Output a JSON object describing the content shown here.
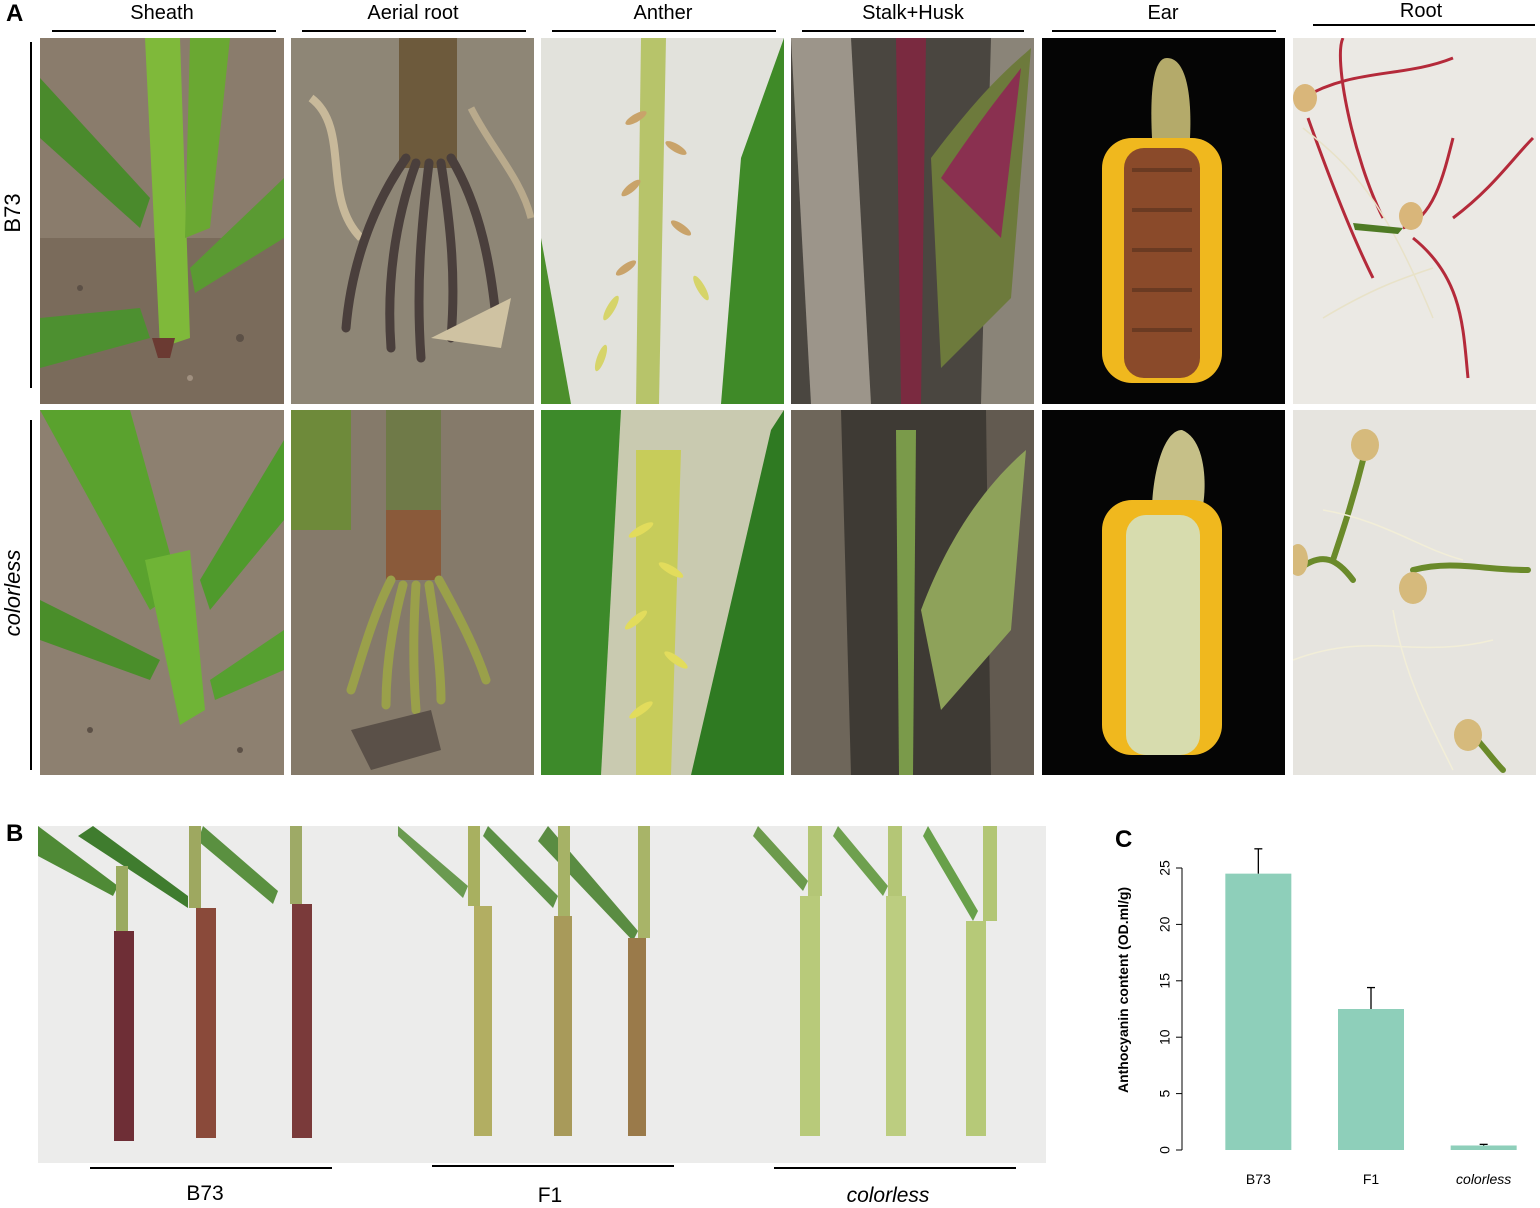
{
  "panel_a": {
    "letter": "A",
    "columns": [
      "Sheath",
      "Aerial root",
      "Anther",
      "Stalk+Husk",
      "Ear",
      "Root"
    ],
    "rows": [
      "B73",
      "colorless"
    ]
  },
  "panel_b": {
    "letter": "B",
    "groups": [
      "B73",
      "F1",
      "colorless"
    ]
  },
  "panel_c": {
    "letter": "C"
  },
  "chart_data": {
    "type": "bar",
    "categories": [
      "B73",
      "F1",
      "colorless"
    ],
    "values": [
      24.5,
      12.5,
      0.4
    ],
    "errors": [
      2.2,
      1.9,
      0.1
    ],
    "ylabel": "Anthocyanin content (OD.ml/g)",
    "ylim": [
      0,
      25
    ],
    "yticks": [
      0,
      5,
      10,
      15,
      20,
      25
    ],
    "bar_color": "#8ecfba",
    "grid": false
  }
}
